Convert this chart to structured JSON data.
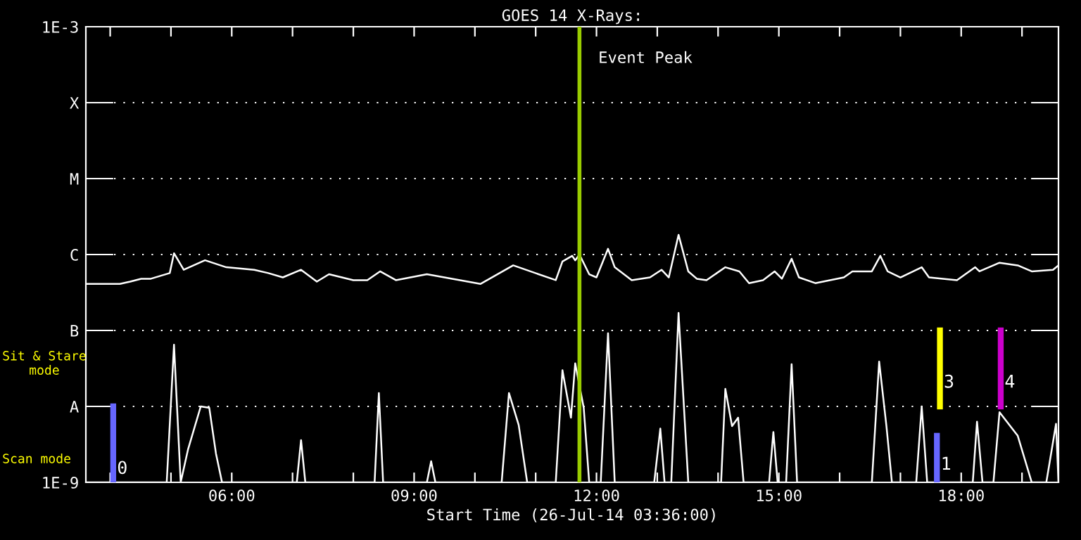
{
  "chart_data": {
    "type": "line",
    "title": "GOES 14 X-Rays:",
    "xlabel": "Start Time (26-Jul-14 03:36:00)",
    "log": "y",
    "grid": "y",
    "xlim": [
      3.6,
      19.6
    ],
    "ylim": [
      1e-09,
      0.001
    ],
    "xticks": [
      {
        "value": 4,
        "label": null
      },
      {
        "value": 5,
        "label": null
      },
      {
        "value": 6,
        "label": "06:00"
      },
      {
        "value": 7,
        "label": null
      },
      {
        "value": 8,
        "label": null
      },
      {
        "value": 9,
        "label": "09:00"
      },
      {
        "value": 10,
        "label": null
      },
      {
        "value": 11,
        "label": null
      },
      {
        "value": 12,
        "label": "12:00"
      },
      {
        "value": 13,
        "label": null
      },
      {
        "value": 14,
        "label": null
      },
      {
        "value": 15,
        "label": "15:00"
      },
      {
        "value": 16,
        "label": null
      },
      {
        "value": 17,
        "label": null
      },
      {
        "value": 18,
        "label": "18:00"
      },
      {
        "value": 19,
        "label": null
      }
    ],
    "yticks": [
      {
        "value": 1e-09,
        "label": "1E-9"
      },
      {
        "value": 1e-08,
        "label": "A"
      },
      {
        "value": 1e-07,
        "label": "B"
      },
      {
        "value": 1e-06,
        "label": "C"
      },
      {
        "value": 1e-05,
        "label": "M"
      },
      {
        "value": 0.0001,
        "label": "X"
      },
      {
        "value": 0.001,
        "label": "1E-3"
      }
    ],
    "series": [
      {
        "color": "#ffffff",
        "x": [
          3.6,
          4.16,
          4.33,
          4.51,
          4.67,
          4.98,
          5.05,
          5.21,
          5.56,
          5.91,
          6.37,
          6.6,
          6.84,
          7.14,
          7.4,
          7.6,
          8.0,
          8.23,
          8.44,
          8.7,
          9.21,
          10.09,
          10.63,
          11.33,
          11.44,
          11.6,
          11.65,
          11.72,
          11.88,
          12.0,
          12.19,
          12.3,
          12.58,
          12.88,
          13.07,
          13.19,
          13.35,
          13.51,
          13.65,
          13.81,
          14.12,
          14.35,
          14.51,
          14.74,
          14.93,
          15.05,
          15.21,
          15.33,
          15.6,
          16.07,
          16.21,
          16.53,
          16.67,
          16.79,
          17.0,
          17.35,
          17.47,
          17.93,
          18.23,
          18.3,
          18.63,
          18.93,
          19.16,
          19.51,
          19.6
        ],
        "values": [
          4.1e-07,
          4.1e-07,
          4.4e-07,
          4.8e-07,
          4.8e-07,
          5.7e-07,
          1.04e-06,
          6.3e-07,
          8.4e-07,
          6.8e-07,
          6.3e-07,
          5.7e-07,
          5e-07,
          6.3e-07,
          4.4e-07,
          5.5e-07,
          4.6e-07,
          4.6e-07,
          6e-07,
          4.6e-07,
          5.5e-07,
          4.1e-07,
          7.2e-07,
          4.6e-07,
          8.1e-07,
          9.6e-07,
          8.4e-07,
          1e-06,
          5.5e-07,
          5e-07,
          1.19e-06,
          6.8e-07,
          4.6e-07,
          5e-07,
          6.3e-07,
          5e-07,
          1.82e-06,
          6e-07,
          4.8e-07,
          4.6e-07,
          6.8e-07,
          6e-07,
          4.2e-07,
          4.6e-07,
          6e-07,
          4.8e-07,
          8.8e-07,
          5e-07,
          4.2e-07,
          5e-07,
          6e-07,
          6e-07,
          9.6e-07,
          6e-07,
          5e-07,
          6.8e-07,
          5e-07,
          4.6e-07,
          6.8e-07,
          6e-07,
          7.8e-07,
          7.2e-07,
          6e-07,
          6.3e-07,
          7.2e-07
        ]
      },
      {
        "color": "#ffffff",
        "x": [
          3.6,
          4.93,
          5.05,
          5.16,
          5.28,
          5.49,
          5.63,
          5.74,
          5.84,
          7.07,
          7.14,
          7.21,
          8.35,
          8.42,
          8.49,
          9.21,
          9.28,
          9.35,
          10.44,
          10.56,
          10.72,
          10.86,
          11.33,
          11.44,
          11.58,
          11.65,
          11.79,
          11.88,
          12.07,
          12.19,
          12.3,
          12.95,
          13.05,
          13.12,
          13.23,
          13.35,
          13.51,
          14.05,
          14.12,
          14.23,
          14.33,
          14.42,
          14.84,
          14.91,
          14.98,
          15.12,
          15.21,
          15.3,
          16.53,
          16.65,
          16.77,
          16.86,
          17.26,
          17.35,
          17.44,
          18.19,
          18.26,
          18.35,
          18.53,
          18.63,
          18.93,
          19.16,
          19.4,
          19.56,
          19.6
        ],
        "values": [
          1e-09,
          1e-09,
          6.5e-08,
          1e-09,
          2.7e-09,
          1e-08,
          9.6e-09,
          2.4e-09,
          1e-09,
          1e-09,
          3.6e-09,
          1e-09,
          1e-09,
          1.5e-08,
          1e-09,
          1e-09,
          1.9e-09,
          1e-09,
          1e-09,
          1.5e-08,
          5.7e-09,
          1e-09,
          1e-09,
          3e-08,
          7.1e-09,
          3.7e-08,
          9.6e-09,
          1e-09,
          1e-09,
          9.2e-08,
          1e-09,
          1e-09,
          5.1e-09,
          1e-09,
          1e-09,
          1.7e-07,
          1e-09,
          1e-09,
          1.7e-08,
          5.5e-09,
          7.1e-09,
          1e-09,
          1e-09,
          4.6e-09,
          1e-09,
          1e-09,
          3.6e-08,
          1e-09,
          1e-09,
          3.9e-08,
          5.5e-09,
          1e-09,
          1e-09,
          1e-08,
          1e-09,
          1e-09,
          6.3e-09,
          1e-09,
          1e-09,
          8.4e-09,
          4.1e-09,
          1e-09,
          1e-09,
          5.9e-09,
          1e-09
        ]
      },
      {
        "color": "#6666ff",
        "x": [
          4.05,
          4.05
        ],
        "values": [
          1e-09,
          1e-08
        ]
      },
      {
        "color": "#6666ff",
        "x": [
          17.6,
          17.6
        ],
        "values": [
          1e-09,
          4.1e-09
        ]
      },
      {
        "color": "#ffff00",
        "x": [
          17.65,
          17.65
        ],
        "values": [
          1e-08,
          1e-07
        ]
      },
      {
        "color": "#cc00cc",
        "x": [
          18.65,
          18.65
        ],
        "values": [
          1e-08,
          1e-07
        ]
      }
    ],
    "ref_lines": [
      {
        "axis": "x",
        "value": 11.72,
        "label": "Event Peak",
        "color": "#99cc00"
      }
    ],
    "annotations": [
      {
        "text": "0",
        "x": 4.2,
        "y": 1.5e-09
      },
      {
        "text": "1",
        "x": 17.75,
        "y": 1.7e-09
      },
      {
        "text": "3",
        "x": 17.8,
        "y": 2.05e-08
      },
      {
        "text": "4",
        "x": 18.8,
        "y": 2.05e-08
      },
      "Sit & Stare\nmode",
      "Scan mode"
    ]
  }
}
